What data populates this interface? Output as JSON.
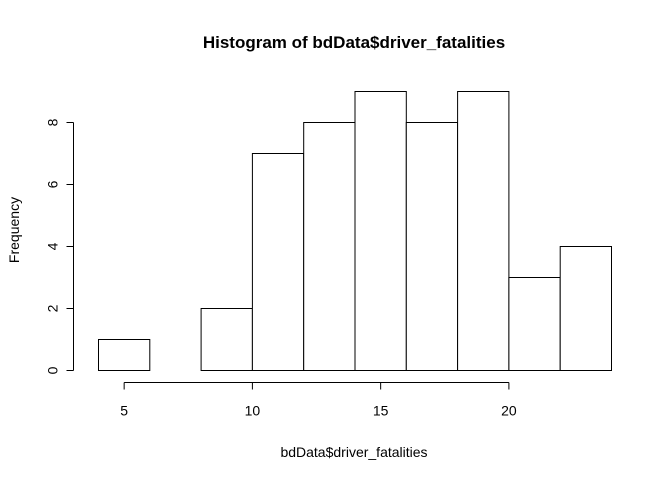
{
  "chart_data": {
    "type": "bar",
    "title": "Histogram of bdData$driver_fatalities",
    "xlabel": "bdData$driver_fatalities",
    "ylabel": "Frequency",
    "bins": [
      {
        "x0": 4,
        "x1": 6,
        "count": 1
      },
      {
        "x0": 6,
        "x1": 8,
        "count": 0
      },
      {
        "x0": 8,
        "x1": 10,
        "count": 2
      },
      {
        "x0": 10,
        "x1": 12,
        "count": 7
      },
      {
        "x0": 12,
        "x1": 14,
        "count": 8
      },
      {
        "x0": 14,
        "x1": 16,
        "count": 9
      },
      {
        "x0": 16,
        "x1": 18,
        "count": 8
      },
      {
        "x0": 18,
        "x1": 20,
        "count": 9
      },
      {
        "x0": 20,
        "x1": 22,
        "count": 3
      },
      {
        "x0": 22,
        "x1": 24,
        "count": 4
      }
    ],
    "xticks": [
      5,
      10,
      15,
      20
    ],
    "yticks": [
      0,
      2,
      4,
      6,
      8
    ],
    "xlim": [
      4,
      24
    ],
    "ylim": [
      0,
      9
    ],
    "grid": false,
    "colors": {
      "fill": "#ffffff",
      "stroke": "#000000"
    }
  }
}
